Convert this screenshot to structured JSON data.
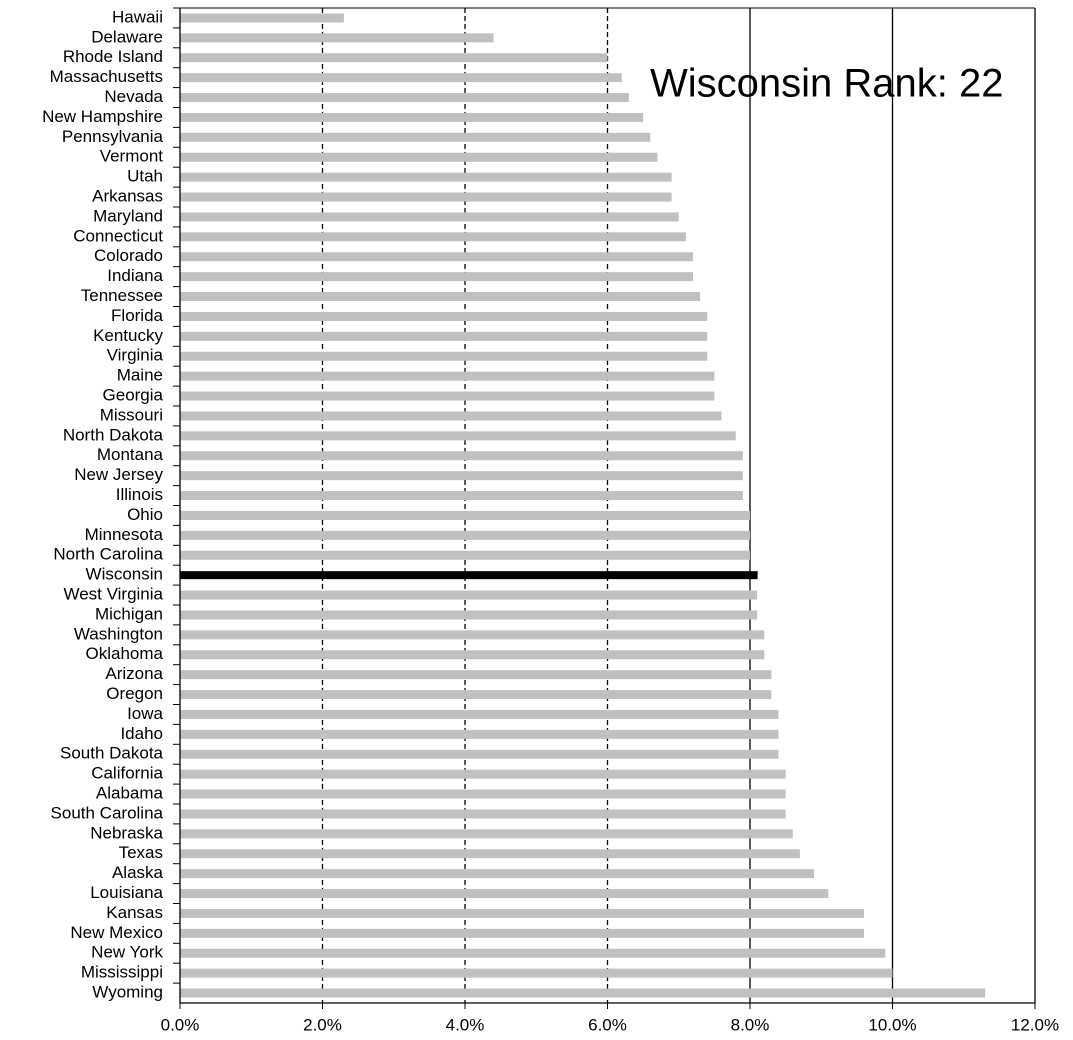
{
  "chart_data": {
    "type": "barh",
    "categories": [
      "Hawaii",
      "Delaware",
      "Rhode Island",
      "Massachusetts",
      "Nevada",
      "New Hampshire",
      "Pennsylvania",
      "Vermont",
      "Utah",
      "Arkansas",
      "Maryland",
      "Connecticut",
      "Colorado",
      "Indiana",
      "Tennessee",
      "Florida",
      "Kentucky",
      "Virginia",
      "Maine",
      "Georgia",
      "Missouri",
      "North Dakota",
      "Montana",
      "New Jersey",
      "Illinois",
      "Ohio",
      "Minnesota",
      "North Carolina",
      "Wisconsin",
      "West Virginia",
      "Michigan",
      "Washington",
      "Oklahoma",
      "Arizona",
      "Oregon",
      "Iowa",
      "Idaho",
      "South Dakota",
      "California",
      "Alabama",
      "South Carolina",
      "Nebraska",
      "Texas",
      "Alaska",
      "Louisiana",
      "Kansas",
      "New Mexico",
      "New York",
      "Mississippi",
      "Wyoming"
    ],
    "values": [
      2.3,
      4.4,
      6.0,
      6.2,
      6.3,
      6.5,
      6.6,
      6.7,
      6.9,
      6.9,
      7.0,
      7.1,
      7.2,
      7.2,
      7.3,
      7.4,
      7.4,
      7.4,
      7.5,
      7.5,
      7.6,
      7.8,
      7.9,
      7.9,
      7.9,
      8.0,
      8.0,
      8.0,
      8.1,
      8.1,
      8.1,
      8.2,
      8.2,
      8.3,
      8.3,
      8.4,
      8.4,
      8.4,
      8.5,
      8.5,
      8.5,
      8.6,
      8.7,
      8.9,
      9.1,
      9.6,
      9.6,
      9.9,
      10.0,
      11.3
    ],
    "colors": [
      "#c0c0c0",
      "#c0c0c0",
      "#c0c0c0",
      "#c0c0c0",
      "#c0c0c0",
      "#c0c0c0",
      "#c0c0c0",
      "#c0c0c0",
      "#c0c0c0",
      "#c0c0c0",
      "#c0c0c0",
      "#c0c0c0",
      "#c0c0c0",
      "#c0c0c0",
      "#c0c0c0",
      "#c0c0c0",
      "#c0c0c0",
      "#c0c0c0",
      "#c0c0c0",
      "#c0c0c0",
      "#c0c0c0",
      "#c0c0c0",
      "#c0c0c0",
      "#c0c0c0",
      "#c0c0c0",
      "#c0c0c0",
      "#c0c0c0",
      "#c0c0c0",
      "#000000",
      "#c0c0c0",
      "#c0c0c0",
      "#c0c0c0",
      "#c0c0c0",
      "#c0c0c0",
      "#c0c0c0",
      "#c0c0c0",
      "#c0c0c0",
      "#c0c0c0",
      "#c0c0c0",
      "#c0c0c0",
      "#c0c0c0",
      "#c0c0c0",
      "#c0c0c0",
      "#c0c0c0",
      "#c0c0c0",
      "#c0c0c0",
      "#c0c0c0",
      "#c0c0c0",
      "#c0c0c0",
      "#c0c0c0"
    ],
    "annotation": "Wisconsin Rank: 22",
    "xlim": [
      0,
      12
    ],
    "xticks": [
      {
        "value": 0,
        "label": "0.0%"
      },
      {
        "value": 2,
        "label": "2.0%"
      },
      {
        "value": 4,
        "label": "4.0%"
      },
      {
        "value": 6,
        "label": "6.0%"
      },
      {
        "value": 8,
        "label": "8.0%"
      },
      {
        "value": 10,
        "label": "10.0%"
      },
      {
        "value": 12,
        "label": "12.0%"
      }
    ],
    "grid": true
  }
}
